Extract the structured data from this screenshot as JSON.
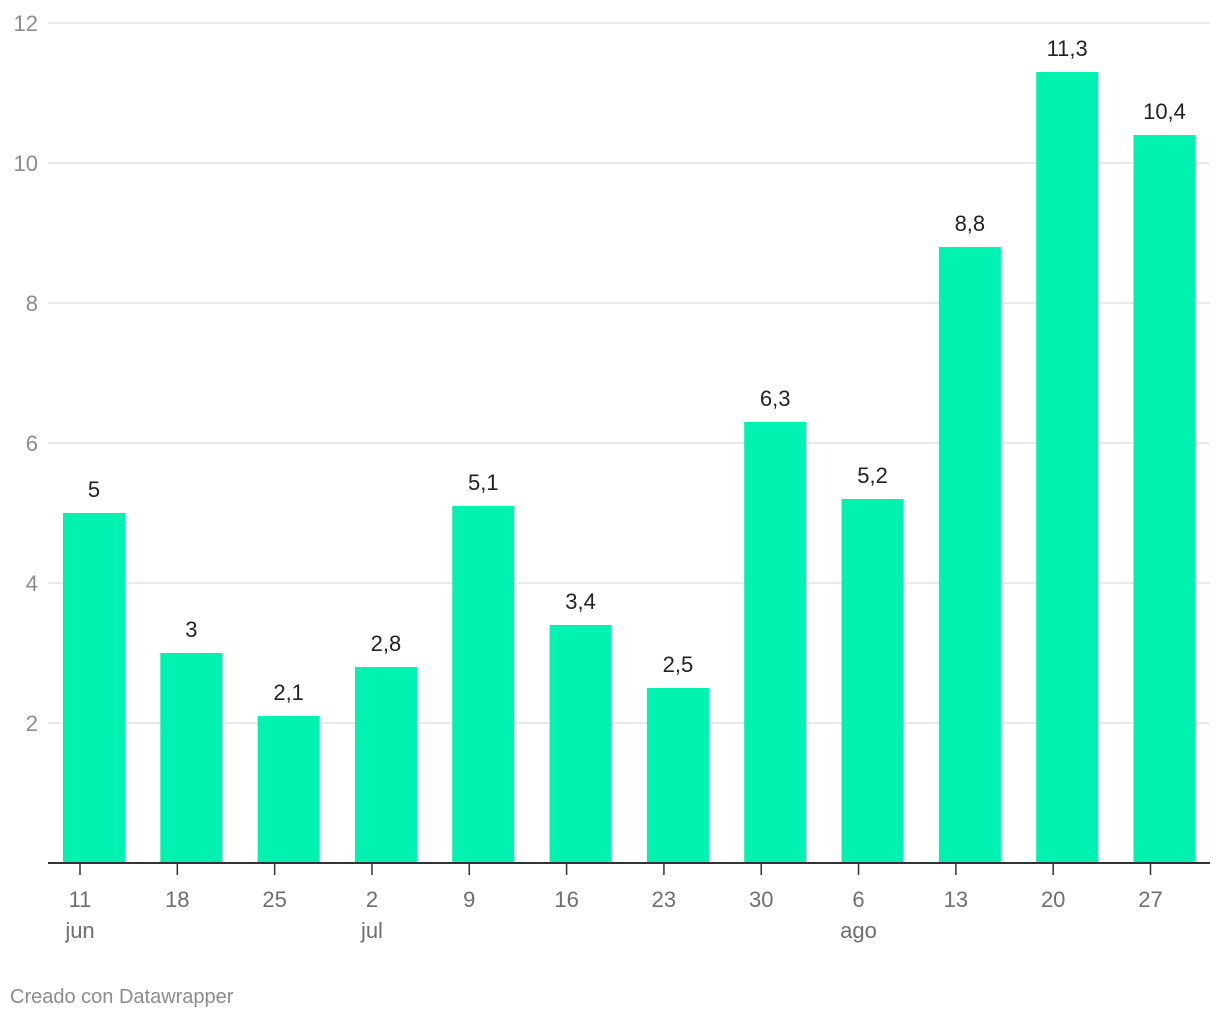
{
  "chart_data": {
    "type": "bar",
    "categories": [
      "11",
      "18",
      "25",
      "2",
      "9",
      "16",
      "23",
      "30",
      "6",
      "13",
      "20",
      "27"
    ],
    "month_labels": [
      {
        "category_index": 0,
        "label": "jun"
      },
      {
        "category_index": 3,
        "label": "jul"
      },
      {
        "category_index": 8,
        "label": "ago"
      }
    ],
    "values": [
      5,
      3,
      2.1,
      2.8,
      5.1,
      3.4,
      2.5,
      6.3,
      5.2,
      8.8,
      11.3,
      10.4
    ],
    "value_labels": [
      "5",
      "3",
      "2,1",
      "2,8",
      "5,1",
      "3,4",
      "2,5",
      "6,3",
      "5,2",
      "8,8",
      "11,3",
      "10,4"
    ],
    "ylim": [
      0,
      12
    ],
    "yticks": [
      2,
      4,
      6,
      8,
      10,
      12
    ],
    "ytick_labels": [
      "2",
      "4",
      "6",
      "8",
      "10",
      "12"
    ],
    "grid": true,
    "bar_color": "#00f2b0",
    "grid_color": "#e2e2e2",
    "axis_color": "#333333"
  },
  "credit": "Creado con Datawrapper"
}
